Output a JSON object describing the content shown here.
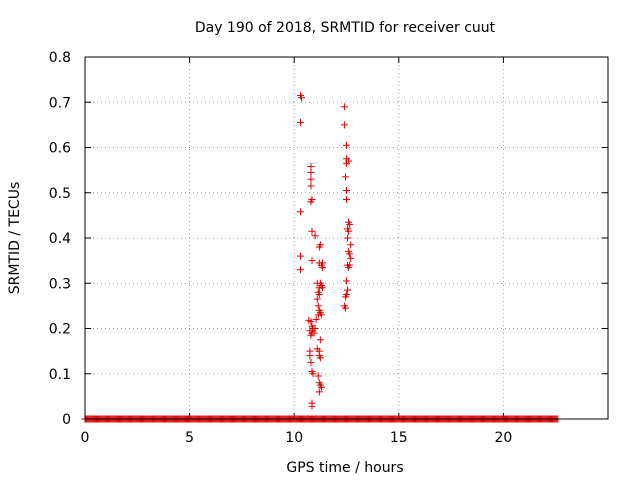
{
  "chart_data": {
    "type": "scatter",
    "title": "Day 190 of 2018, SRMTID for receiver cuut",
    "xlabel": "GPS time / hours",
    "ylabel": "SRMTID / TECUs",
    "xlim": [
      0,
      25
    ],
    "ylim": [
      0,
      0.8
    ],
    "xticks": [
      0,
      5,
      10,
      15,
      20
    ],
    "yticks": [
      0,
      0.1,
      0.2,
      0.3,
      0.4,
      0.5,
      0.6,
      0.7,
      0.8
    ],
    "xtick_labels": [
      "0",
      "5",
      "10",
      "15",
      "20"
    ],
    "ytick_labels": [
      "0",
      "0.1",
      "0.2",
      "0.3",
      "0.4",
      "0.5",
      "0.6",
      "0.7",
      "0.8"
    ],
    "grid": true,
    "marker": "+",
    "marker_color": "#dd0000",
    "baseline": {
      "y": 0,
      "x_start": 0.0,
      "x_end": 22.6,
      "step": 0.05
    },
    "series": [
      {
        "name": "SRMTID",
        "points": [
          [
            10.3,
            0.715
          ],
          [
            10.35,
            0.71
          ],
          [
            10.3,
            0.655
          ],
          [
            10.3,
            0.458
          ],
          [
            10.3,
            0.36
          ],
          [
            10.3,
            0.33
          ],
          [
            10.8,
            0.558
          ],
          [
            10.8,
            0.545
          ],
          [
            10.8,
            0.53
          ],
          [
            10.8,
            0.515
          ],
          [
            10.85,
            0.485
          ],
          [
            10.8,
            0.48
          ],
          [
            10.85,
            0.415
          ],
          [
            11.0,
            0.405
          ],
          [
            10.85,
            0.35
          ],
          [
            10.7,
            0.218
          ],
          [
            10.8,
            0.215
          ],
          [
            10.85,
            0.205
          ],
          [
            10.9,
            0.2
          ],
          [
            10.75,
            0.195
          ],
          [
            10.85,
            0.19
          ],
          [
            10.95,
            0.19
          ],
          [
            11.0,
            0.2
          ],
          [
            10.8,
            0.185
          ],
          [
            10.75,
            0.15
          ],
          [
            10.75,
            0.14
          ],
          [
            10.8,
            0.125
          ],
          [
            10.85,
            0.105
          ],
          [
            10.9,
            0.1
          ],
          [
            10.85,
            0.035
          ],
          [
            10.85,
            0.028
          ],
          [
            11.2,
            0.38
          ],
          [
            11.25,
            0.385
          ],
          [
            11.2,
            0.345
          ],
          [
            11.35,
            0.345
          ],
          [
            11.3,
            0.34
          ],
          [
            11.35,
            0.335
          ],
          [
            11.1,
            0.3
          ],
          [
            11.2,
            0.29
          ],
          [
            11.25,
            0.3
          ],
          [
            11.3,
            0.295
          ],
          [
            11.35,
            0.29
          ],
          [
            11.15,
            0.28
          ],
          [
            11.2,
            0.275
          ],
          [
            11.1,
            0.265
          ],
          [
            11.15,
            0.25
          ],
          [
            11.2,
            0.24
          ],
          [
            11.25,
            0.235
          ],
          [
            11.15,
            0.23
          ],
          [
            11.3,
            0.23
          ],
          [
            11.05,
            0.22
          ],
          [
            11.25,
            0.175
          ],
          [
            11.1,
            0.155
          ],
          [
            11.2,
            0.15
          ],
          [
            11.2,
            0.14
          ],
          [
            11.25,
            0.135
          ],
          [
            11.15,
            0.095
          ],
          [
            11.2,
            0.08
          ],
          [
            11.25,
            0.075
          ],
          [
            11.3,
            0.07
          ],
          [
            11.2,
            0.06
          ],
          [
            12.4,
            0.69
          ],
          [
            12.4,
            0.65
          ],
          [
            12.5,
            0.605
          ],
          [
            12.5,
            0.575
          ],
          [
            12.5,
            0.565
          ],
          [
            12.6,
            0.57
          ],
          [
            12.45,
            0.535
          ],
          [
            12.5,
            0.505
          ],
          [
            12.5,
            0.485
          ],
          [
            12.6,
            0.435
          ],
          [
            12.65,
            0.43
          ],
          [
            12.55,
            0.42
          ],
          [
            12.6,
            0.415
          ],
          [
            12.55,
            0.4
          ],
          [
            12.7,
            0.385
          ],
          [
            12.6,
            0.37
          ],
          [
            12.65,
            0.365
          ],
          [
            12.7,
            0.355
          ],
          [
            12.55,
            0.34
          ],
          [
            12.6,
            0.335
          ],
          [
            12.65,
            0.34
          ],
          [
            12.5,
            0.305
          ],
          [
            12.55,
            0.285
          ],
          [
            12.5,
            0.275
          ],
          [
            12.45,
            0.27
          ],
          [
            12.4,
            0.25
          ],
          [
            12.45,
            0.245
          ]
        ]
      }
    ]
  }
}
